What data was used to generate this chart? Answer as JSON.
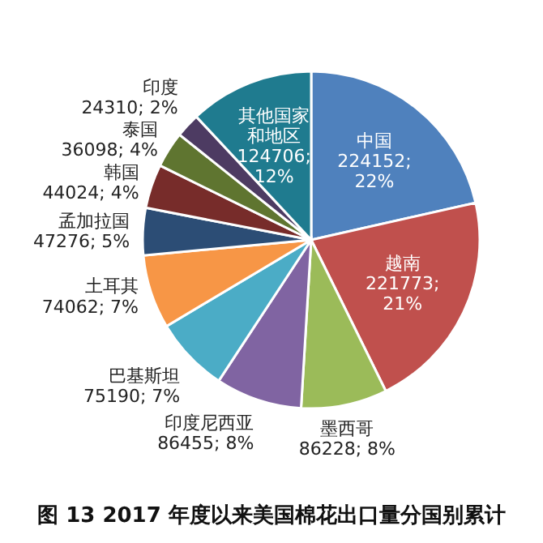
{
  "chart_data": {
    "type": "pie",
    "title": "图 13 2017 年度以来美国棉花出口量分国别累计",
    "categories": [
      "中国",
      "越南",
      "墨西哥",
      "印度尼西亚",
      "巴基斯坦",
      "土耳其",
      "孟加拉国",
      "韩国",
      "泰国",
      "印度",
      "其他国家和地区"
    ],
    "values": [
      224152,
      221773,
      86228,
      86455,
      75190,
      74062,
      47276,
      44024,
      36098,
      24310,
      124706
    ],
    "value_labels": [
      "224152; 22%",
      "221773; 21%",
      "86228; 8%",
      "86455; 8%",
      "75190; 7%",
      "74062; 7%",
      "47276; 5%",
      "44024; 4%",
      "36098; 4%",
      "24310; 2%",
      "124706; 12%"
    ],
    "colors": [
      "#4f81bd",
      "#c0504d",
      "#9bbb59",
      "#8064a2",
      "#4bacc6",
      "#f79646",
      "#2c4d75",
      "#772c2a",
      "#5f7530",
      "#4d3b62",
      "#1f7b8f"
    ]
  }
}
